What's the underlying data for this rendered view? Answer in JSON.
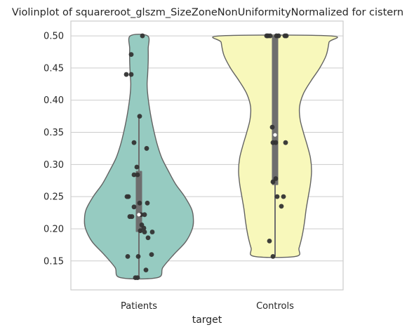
{
  "chart_data": {
    "type": "violin",
    "title": "Violinplot of squareroot_glszm_SizeZoneNonUniformityNormalized for cistern",
    "xlabel": "target",
    "ylabel": "",
    "categories": [
      "Patients",
      "Controls"
    ],
    "ylim": [
      0.105,
      0.523
    ],
    "yticks": [
      0.15,
      0.2,
      0.25,
      0.3,
      0.35,
      0.4,
      0.45,
      0.5
    ],
    "ytick_labels": [
      "0.15",
      "0.20",
      "0.25",
      "0.30",
      "0.35",
      "0.40",
      "0.45",
      "0.50"
    ],
    "grid": "horizontal",
    "colors": {
      "Patients": "#96cbc1",
      "Controls": "#f8f8bb",
      "outline": "#636363",
      "box": "#6e6e6e",
      "points": "#333333",
      "grid": "#cccccc",
      "frame": "#cccccc"
    },
    "violins": [
      {
        "category": "Patients",
        "min": 0.124,
        "max": 0.5,
        "profile": [
          [
            0.124,
            0.34
          ],
          [
            0.14,
            0.44
          ],
          [
            0.16,
            0.64
          ],
          [
            0.18,
            0.86
          ],
          [
            0.2,
            0.98
          ],
          [
            0.215,
            1.0
          ],
          [
            0.23,
            0.97
          ],
          [
            0.25,
            0.84
          ],
          [
            0.27,
            0.67
          ],
          [
            0.29,
            0.54
          ],
          [
            0.31,
            0.42
          ],
          [
            0.33,
            0.34
          ],
          [
            0.35,
            0.28
          ],
          [
            0.37,
            0.23
          ],
          [
            0.39,
            0.19
          ],
          [
            0.41,
            0.16
          ],
          [
            0.425,
            0.15
          ],
          [
            0.44,
            0.16
          ],
          [
            0.46,
            0.17
          ],
          [
            0.48,
            0.17
          ],
          [
            0.5,
            0.16
          ]
        ],
        "box": {
          "q1": 0.195,
          "median": 0.222,
          "q3": 0.29,
          "whisker_low": 0.124,
          "whisker_high": 0.375
        },
        "points": [
          [
            0.5,
            0.05
          ],
          [
            0.471,
            -0.11
          ],
          [
            0.44,
            -0.18
          ],
          [
            0.44,
            -0.11
          ],
          [
            0.375,
            0.01
          ],
          [
            0.334,
            -0.07
          ],
          [
            0.325,
            0.11
          ],
          [
            0.296,
            -0.03
          ],
          [
            0.284,
            -0.07
          ],
          [
            0.284,
            -0.02
          ],
          [
            0.25,
            -0.17
          ],
          [
            0.25,
            -0.15
          ],
          [
            0.24,
            0.01
          ],
          [
            0.24,
            0.12
          ],
          [
            0.234,
            -0.07
          ],
          [
            0.222,
            0.08
          ],
          [
            0.222,
            0.03
          ],
          [
            0.219,
            -0.13
          ],
          [
            0.219,
            -0.1
          ],
          [
            0.206,
            0.04
          ],
          [
            0.201,
            0.07
          ],
          [
            0.197,
            0.02
          ],
          [
            0.195,
            0.08
          ],
          [
            0.195,
            0.19
          ],
          [
            0.186,
            0.13
          ],
          [
            0.16,
            0.18
          ],
          [
            0.157,
            -0.16
          ],
          [
            0.157,
            -0.01
          ],
          [
            0.136,
            0.1
          ],
          [
            0.124,
            -0.05
          ],
          [
            0.124,
            -0.02
          ]
        ]
      },
      {
        "category": "Controls",
        "min": 0.157,
        "max": 0.5,
        "profile": [
          [
            0.157,
            0.38
          ],
          [
            0.17,
            0.44
          ],
          [
            0.19,
            0.5
          ],
          [
            0.21,
            0.54
          ],
          [
            0.23,
            0.57
          ],
          [
            0.25,
            0.61
          ],
          [
            0.27,
            0.65
          ],
          [
            0.29,
            0.67
          ],
          [
            0.31,
            0.65
          ],
          [
            0.33,
            0.59
          ],
          [
            0.35,
            0.52
          ],
          [
            0.37,
            0.46
          ],
          [
            0.39,
            0.45
          ],
          [
            0.41,
            0.52
          ],
          [
            0.43,
            0.66
          ],
          [
            0.45,
            0.82
          ],
          [
            0.47,
            0.94
          ],
          [
            0.49,
            0.99
          ],
          [
            0.5,
            1.0
          ]
        ],
        "box": {
          "q1": 0.268,
          "median": 0.346,
          "q3": 0.5,
          "whisker_low": 0.157,
          "whisker_high": 0.5
        },
        "points": [
          [
            0.5,
            -0.12
          ],
          [
            0.5,
            -0.1
          ],
          [
            0.5,
            -0.07
          ],
          [
            0.5,
            0.02
          ],
          [
            0.5,
            0.05
          ],
          [
            0.5,
            0.14
          ],
          [
            0.5,
            0.16
          ],
          [
            0.358,
            -0.04
          ],
          [
            0.334,
            -0.03
          ],
          [
            0.334,
            0.01
          ],
          [
            0.334,
            0.15
          ],
          [
            0.278,
            0.01
          ],
          [
            0.273,
            -0.03
          ],
          [
            0.25,
            0.03
          ],
          [
            0.25,
            0.12
          ],
          [
            0.235,
            0.09
          ],
          [
            0.181,
            -0.08
          ],
          [
            0.157,
            -0.03
          ]
        ]
      }
    ]
  }
}
